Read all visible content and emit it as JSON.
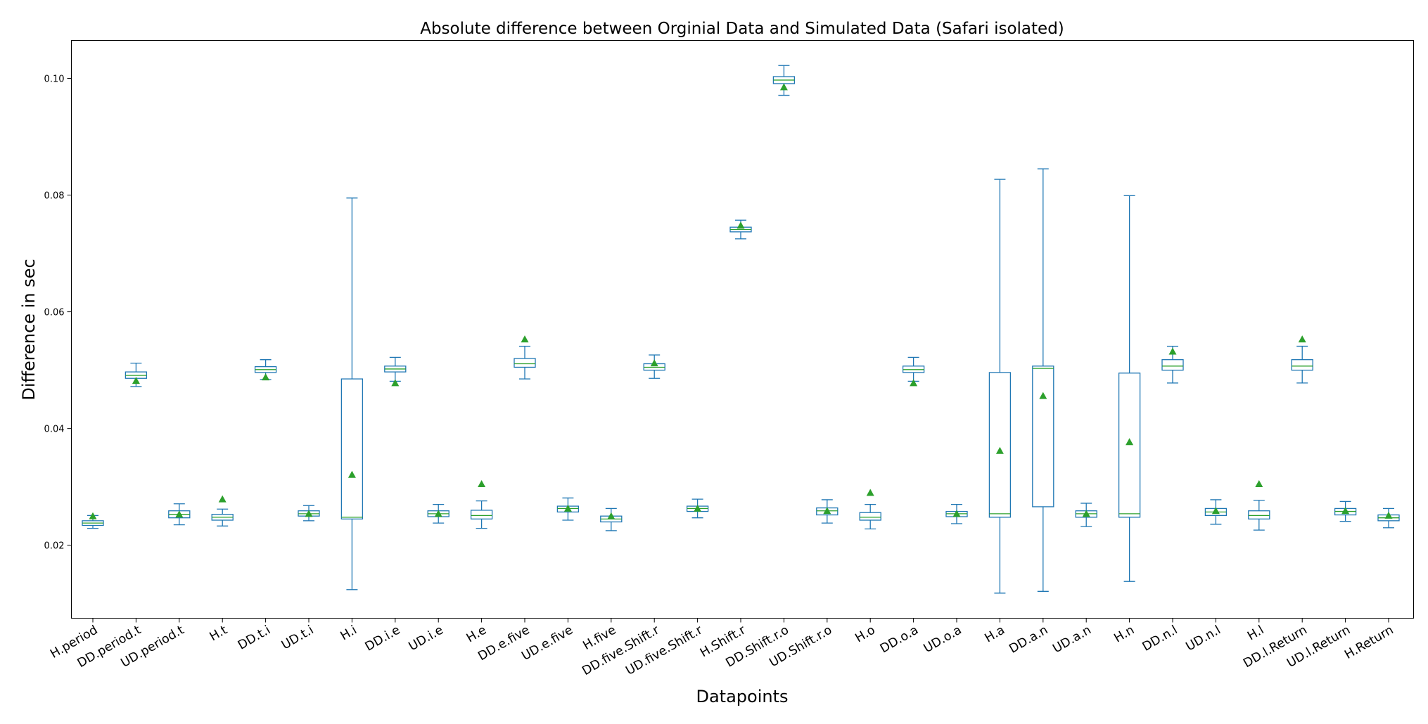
{
  "chart_data": {
    "type": "box",
    "title": "Absolute difference between Orginial Data and Simulated Data (Safari isolated)",
    "xlabel": "Datapoints",
    "ylabel": "Difference in sec",
    "ylim": [
      0.0075,
      0.1065
    ],
    "yticks": [
      0.02,
      0.04,
      0.06,
      0.08,
      0.1
    ],
    "ytick_labels": [
      "0.02",
      "0.04",
      "0.06",
      "0.08",
      "0.10"
    ],
    "grid": false,
    "colors": {
      "box": "#1f77b4",
      "median": "#2ca02c",
      "mean": "#2ca02c"
    },
    "categories": [
      "H.period",
      "DD.period.t",
      "UD.period.t",
      "H.t",
      "DD.t.i",
      "UD.t.i",
      "H.i",
      "DD.i.e",
      "UD.i.e",
      "H.e",
      "DD.e.five",
      "UD.e.five",
      "H.five",
      "DD.five.Shift.r",
      "UD.five.Shift.r",
      "H.Shift.r",
      "DD.Shift.r.o",
      "UD.Shift.r.o",
      "H.o",
      "DD.o.a",
      "UD.o.a",
      "H.a",
      "DD.a.n",
      "UD.a.n",
      "H.n",
      "DD.n.l",
      "UD.n.l",
      "H.l",
      "DD.l.Return",
      "UD.l.Return",
      "H.Return"
    ],
    "series": [
      {
        "min": 0.0229,
        "q1": 0.0234,
        "median": 0.0238,
        "q3": 0.0242,
        "max": 0.0251,
        "mean": 0.025
      },
      {
        "min": 0.0472,
        "q1": 0.0486,
        "median": 0.0491,
        "q3": 0.0497,
        "max": 0.0512,
        "mean": 0.0482
      },
      {
        "min": 0.0235,
        "q1": 0.0247,
        "median": 0.0253,
        "q3": 0.0259,
        "max": 0.0271,
        "mean": 0.0253
      },
      {
        "min": 0.0233,
        "q1": 0.0243,
        "median": 0.0248,
        "q3": 0.0253,
        "max": 0.0262,
        "mean": 0.0279
      },
      {
        "min": 0.0484,
        "q1": 0.0496,
        "median": 0.0501,
        "q3": 0.0506,
        "max": 0.0518,
        "mean": 0.0488
      },
      {
        "min": 0.0242,
        "q1": 0.025,
        "median": 0.0254,
        "q3": 0.0259,
        "max": 0.0268,
        "mean": 0.0254
      },
      {
        "min": 0.0124,
        "q1": 0.0245,
        "median": 0.0248,
        "q3": 0.0485,
        "max": 0.0795,
        "mean": 0.0321
      },
      {
        "min": 0.0481,
        "q1": 0.0497,
        "median": 0.0502,
        "q3": 0.0507,
        "max": 0.0522,
        "mean": 0.0478
      },
      {
        "min": 0.0238,
        "q1": 0.0249,
        "median": 0.0254,
        "q3": 0.0259,
        "max": 0.027,
        "mean": 0.0254
      },
      {
        "min": 0.0229,
        "q1": 0.0245,
        "median": 0.0251,
        "q3": 0.026,
        "max": 0.0276,
        "mean": 0.0305
      },
      {
        "min": 0.0485,
        "q1": 0.0505,
        "median": 0.0511,
        "q3": 0.052,
        "max": 0.0541,
        "mean": 0.0553
      },
      {
        "min": 0.0243,
        "q1": 0.0257,
        "median": 0.0263,
        "q3": 0.0267,
        "max": 0.0281,
        "mean": 0.0263
      },
      {
        "min": 0.0225,
        "q1": 0.024,
        "median": 0.0245,
        "q3": 0.025,
        "max": 0.0263,
        "mean": 0.025
      },
      {
        "min": 0.0486,
        "q1": 0.05,
        "median": 0.0505,
        "q3": 0.0511,
        "max": 0.0526,
        "mean": 0.0512
      },
      {
        "min": 0.0247,
        "q1": 0.0258,
        "median": 0.0263,
        "q3": 0.0267,
        "max": 0.0279,
        "mean": 0.0263
      },
      {
        "min": 0.0725,
        "q1": 0.0737,
        "median": 0.0741,
        "q3": 0.0745,
        "max": 0.0757,
        "mean": 0.0748
      },
      {
        "min": 0.0971,
        "q1": 0.0991,
        "median": 0.0997,
        "q3": 0.1003,
        "max": 0.1022,
        "mean": 0.0985
      },
      {
        "min": 0.0238,
        "q1": 0.0252,
        "median": 0.0259,
        "q3": 0.0264,
        "max": 0.0278,
        "mean": 0.0259
      },
      {
        "min": 0.0228,
        "q1": 0.0243,
        "median": 0.0248,
        "q3": 0.0256,
        "max": 0.027,
        "mean": 0.029
      },
      {
        "min": 0.0481,
        "q1": 0.0496,
        "median": 0.0501,
        "q3": 0.0507,
        "max": 0.0522,
        "mean": 0.0478
      },
      {
        "min": 0.0237,
        "q1": 0.0249,
        "median": 0.0254,
        "q3": 0.0258,
        "max": 0.027,
        "mean": 0.0254
      },
      {
        "min": 0.0118,
        "q1": 0.0248,
        "median": 0.0254,
        "q3": 0.0496,
        "max": 0.0827,
        "mean": 0.0362
      },
      {
        "min": 0.0121,
        "q1": 0.0266,
        "median": 0.0503,
        "q3": 0.0507,
        "max": 0.0845,
        "mean": 0.0456
      },
      {
        "min": 0.0232,
        "q1": 0.0248,
        "median": 0.0254,
        "q3": 0.0259,
        "max": 0.0272,
        "mean": 0.0254
      },
      {
        "min": 0.0138,
        "q1": 0.0248,
        "median": 0.0254,
        "q3": 0.0495,
        "max": 0.0799,
        "mean": 0.0377
      },
      {
        "min": 0.0478,
        "q1": 0.05,
        "median": 0.0507,
        "q3": 0.0518,
        "max": 0.0541,
        "mean": 0.0532
      },
      {
        "min": 0.0236,
        "q1": 0.0251,
        "median": 0.0257,
        "q3": 0.0263,
        "max": 0.0278,
        "mean": 0.0259
      },
      {
        "min": 0.0226,
        "q1": 0.0245,
        "median": 0.0251,
        "q3": 0.0259,
        "max": 0.0277,
        "mean": 0.0305
      },
      {
        "min": 0.0478,
        "q1": 0.05,
        "median": 0.0507,
        "q3": 0.0518,
        "max": 0.0541,
        "mean": 0.0553
      },
      {
        "min": 0.0241,
        "q1": 0.0252,
        "median": 0.0258,
        "q3": 0.0263,
        "max": 0.0275,
        "mean": 0.0259
      },
      {
        "min": 0.023,
        "q1": 0.0242,
        "median": 0.0247,
        "q3": 0.0252,
        "max": 0.0263,
        "mean": 0.0251
      }
    ]
  }
}
